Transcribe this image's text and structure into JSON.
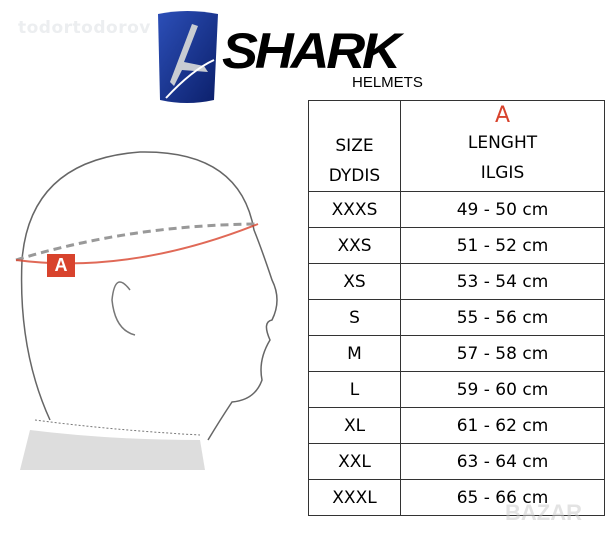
{
  "watermark": "todortodorov",
  "logo": {
    "brand": "SHARK",
    "subtitle": "HELMETS"
  },
  "diagram": {
    "marker": "A"
  },
  "table": {
    "header": {
      "size": "SIZE",
      "size_lt": "DYDIS",
      "marker": "A",
      "length": "LENGHT",
      "length_lt": "ILGIS"
    },
    "rows": [
      {
        "size": "XXXS",
        "length": "49 - 50 cm"
      },
      {
        "size": "XXS",
        "length": "51 - 52 cm"
      },
      {
        "size": "XS",
        "length": "53 - 54 cm"
      },
      {
        "size": "S",
        "length": "55 - 56 cm"
      },
      {
        "size": "M",
        "length": "57 - 58 cm"
      },
      {
        "size": "L",
        "length": "59 - 60 cm"
      },
      {
        "size": "XL",
        "length": "61 - 62 cm"
      },
      {
        "size": "XXL",
        "length": "63 - 64 cm"
      },
      {
        "size": "XXXL",
        "length": "65 - 66 cm"
      }
    ]
  },
  "corner_watermark": "BAZAR",
  "colors": {
    "accent": "#d8432d",
    "logo_blue": "#1a3a9a"
  }
}
